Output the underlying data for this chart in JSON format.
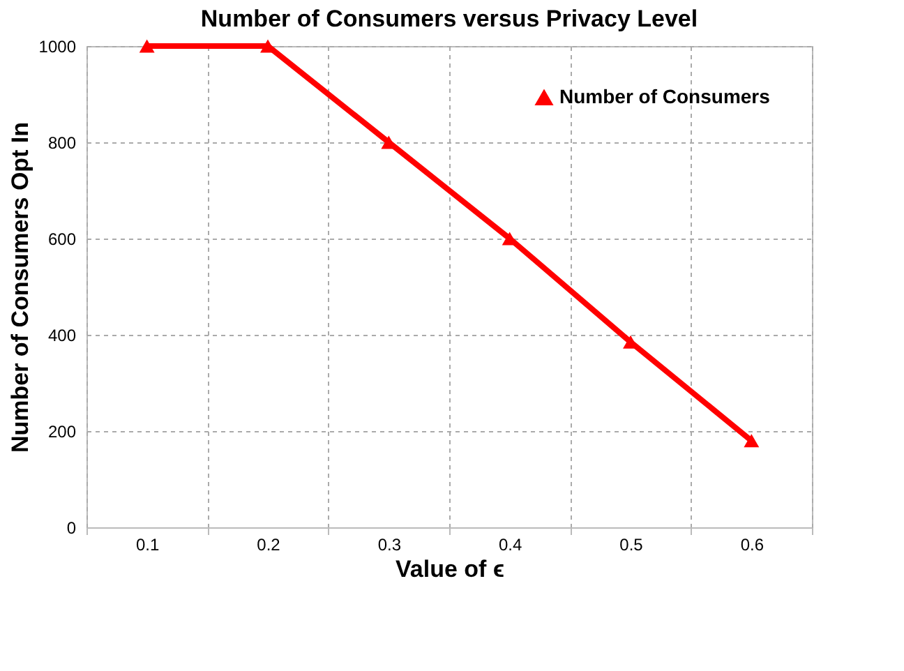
{
  "chart_data": {
    "type": "line",
    "title": "Number of Consumers versus Privacy Level",
    "xlabel": "Value of ϵ",
    "ylabel": "Number of Consumers Opt In",
    "categories": [
      "0.1",
      "0.2",
      "0.3",
      "0.4",
      "0.5",
      "0.6"
    ],
    "series": [
      {
        "name": "Number of Consumers",
        "color": "#ff0000",
        "values": [
          1000,
          1000,
          800,
          600,
          385,
          180
        ]
      }
    ],
    "ylim": [
      0,
      1000
    ],
    "yticks": [
      0,
      200,
      400,
      600,
      800,
      1000
    ],
    "grid": true,
    "legend": "top right",
    "marker": "triangle",
    "line_style": "solid"
  }
}
